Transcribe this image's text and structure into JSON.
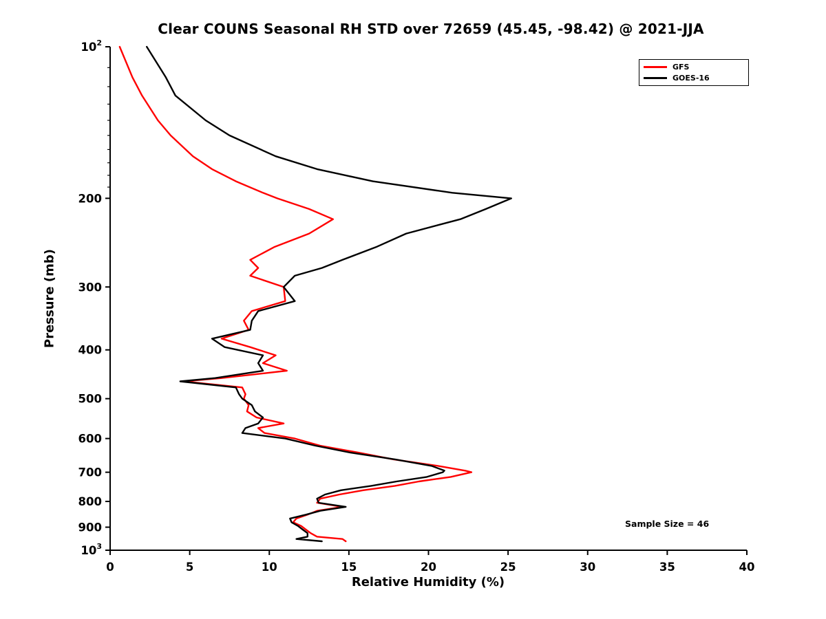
{
  "chart_data": {
    "type": "line",
    "title": "Clear COUNS Seasonal RH STD over 72659 (45.45, -98.42) @ 2021-JJA",
    "xlabel": "Relative Humidity (%)",
    "ylabel": "Pressure (mb)",
    "annotation": "Sample Size = 46",
    "grid": false,
    "legend_position": "top-right",
    "xlim": [
      0,
      40
    ],
    "x_ticks": [
      0,
      5,
      10,
      15,
      20,
      25,
      30,
      35,
      40
    ],
    "y_scale": "log",
    "y_inverted": true,
    "ylim": [
      100,
      1000
    ],
    "y_major_ticks": [
      {
        "value": 100,
        "label": "10",
        "exponent": "2"
      },
      {
        "value": 200,
        "label": "200"
      },
      {
        "value": 300,
        "label": "300"
      },
      {
        "value": 400,
        "label": "400"
      },
      {
        "value": 500,
        "label": "500"
      },
      {
        "value": 600,
        "label": "600"
      },
      {
        "value": 700,
        "label": "700"
      },
      {
        "value": 800,
        "label": "800"
      },
      {
        "value": 900,
        "label": "900"
      },
      {
        "value": 1000,
        "label": "10",
        "exponent": "3"
      }
    ],
    "y_minor_ticks": [
      110,
      120,
      130,
      140,
      150,
      160,
      170,
      180,
      190
    ],
    "pressure_mb": [
      100,
      115,
      125,
      140,
      150,
      165,
      175,
      185,
      195,
      200,
      210,
      220,
      235,
      250,
      265,
      275,
      285,
      300,
      320,
      335,
      350,
      365,
      380,
      395,
      410,
      425,
      440,
      455,
      462,
      475,
      490,
      500,
      515,
      530,
      545,
      560,
      572,
      585,
      600,
      620,
      640,
      660,
      680,
      695,
      700,
      715,
      730,
      745,
      760,
      775,
      790,
      805,
      820,
      835,
      850,
      865,
      880,
      895,
      910,
      925,
      940,
      950,
      960
    ],
    "series": [
      {
        "name": "GFS",
        "color": "#ff0000",
        "values": [
          0.6,
          1.4,
          2.0,
          3.0,
          3.8,
          5.2,
          6.4,
          7.9,
          9.6,
          10.5,
          12.5,
          14.0,
          12.5,
          10.3,
          8.8,
          9.3,
          8.8,
          10.9,
          11.0,
          8.9,
          8.4,
          8.7,
          7.0,
          8.8,
          10.4,
          9.6,
          11.1,
          7.0,
          4.6,
          8.3,
          8.5,
          8.4,
          8.7,
          8.6,
          9.2,
          10.9,
          9.3,
          9.7,
          11.6,
          13.2,
          15.6,
          17.8,
          20.6,
          22.3,
          22.7,
          21.4,
          19.4,
          17.9,
          15.9,
          14.4,
          13.2,
          13.0,
          14.6,
          13.0,
          12.4,
          11.7,
          11.5,
          12.0,
          12.3,
          12.6,
          13.0,
          14.6,
          14.8
        ]
      },
      {
        "name": "GOES-16",
        "color": "#000000",
        "values": [
          2.3,
          3.5,
          4.1,
          6.0,
          7.5,
          10.4,
          13.0,
          16.5,
          21.5,
          25.2,
          23.6,
          22.0,
          18.6,
          16.7,
          14.6,
          13.3,
          11.6,
          10.9,
          11.6,
          9.3,
          8.9,
          8.8,
          6.4,
          7.2,
          9.6,
          9.3,
          9.6,
          6.6,
          4.4,
          7.9,
          8.1,
          8.3,
          8.9,
          9.1,
          9.6,
          9.3,
          8.5,
          8.3,
          11.0,
          12.9,
          15.1,
          17.9,
          20.2,
          21.0,
          20.9,
          19.9,
          18.0,
          16.4,
          14.5,
          13.5,
          13.0,
          13.1,
          14.8,
          13.2,
          12.3,
          11.3,
          11.4,
          11.8,
          12.1,
          12.4,
          12.4,
          11.7,
          13.3
        ]
      }
    ]
  }
}
